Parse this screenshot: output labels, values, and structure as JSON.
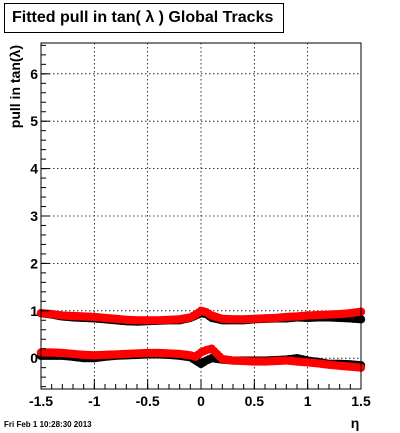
{
  "title": "Fitted pull in tan( λ )  Global Tracks",
  "footer": "Fri Feb  1 10:28:30 2013",
  "chart_data": {
    "type": "scatter",
    "title": "Fitted pull in tan( λ )  Global Tracks",
    "xlabel": "η",
    "ylabel": "pull in tan(λ)",
    "xlim": [
      -1.5,
      1.5
    ],
    "ylim": [
      -0.65,
      6.65
    ],
    "xticks": [
      -1.5,
      -1,
      -0.5,
      0,
      0.5,
      1,
      1.5
    ],
    "xtick_labels": [
      "-1.5",
      "-1",
      "-0.5",
      "0",
      "0.5",
      "1",
      "1.5"
    ],
    "yticks": [
      0,
      1,
      2,
      3,
      4,
      5,
      6
    ],
    "ytick_labels": [
      "0",
      "1",
      "2",
      "3",
      "4",
      "5",
      "6"
    ],
    "grid": true,
    "colors": {
      "series_black": "#000000",
      "series_red": "#ff0000"
    },
    "series": [
      {
        "color": "#000000",
        "x": [
          -1.5,
          -1.4,
          -1.3,
          -1.2,
          -1.1,
          -1.0,
          -0.9,
          -0.8,
          -0.7,
          -0.6,
          -0.5,
          -0.4,
          -0.3,
          -0.2,
          -0.1,
          -0.05,
          0.0,
          0.05,
          0.1,
          0.2,
          0.3,
          0.4,
          0.5,
          0.6,
          0.7,
          0.8,
          0.9,
          1.0,
          1.1,
          1.2,
          1.3,
          1.4,
          1.5
        ],
        "y": [
          0.05,
          0.05,
          0.05,
          0.03,
          0.0,
          0.0,
          0.03,
          0.05,
          0.06,
          0.07,
          0.08,
          0.08,
          0.07,
          0.05,
          0.02,
          -0.05,
          -0.12,
          -0.05,
          0.0,
          -0.03,
          -0.05,
          -0.05,
          -0.05,
          -0.05,
          -0.04,
          -0.03,
          0.0,
          -0.05,
          -0.08,
          -0.12,
          -0.12,
          -0.13,
          -0.15
        ]
      },
      {
        "color": "#000000",
        "x": [
          -1.5,
          -1.4,
          -1.3,
          -1.2,
          -1.1,
          -1.0,
          -0.9,
          -0.8,
          -0.7,
          -0.6,
          -0.5,
          -0.4,
          -0.3,
          -0.2,
          -0.1,
          0.0,
          0.05,
          0.1,
          0.2,
          0.3,
          0.4,
          0.5,
          0.6,
          0.7,
          0.8,
          0.9,
          1.0,
          1.1,
          1.2,
          1.3,
          1.4,
          1.5
        ],
        "y": [
          0.95,
          0.92,
          0.88,
          0.86,
          0.85,
          0.84,
          0.82,
          0.8,
          0.78,
          0.77,
          0.78,
          0.79,
          0.8,
          0.8,
          0.85,
          0.95,
          0.93,
          0.85,
          0.8,
          0.8,
          0.8,
          0.82,
          0.83,
          0.84,
          0.84,
          0.86,
          0.85,
          0.86,
          0.86,
          0.85,
          0.84,
          0.82
        ]
      },
      {
        "color": "#ff0000",
        "x": [
          -1.5,
          -1.4,
          -1.3,
          -1.2,
          -1.1,
          -1.0,
          -0.9,
          -0.8,
          -0.7,
          -0.6,
          -0.5,
          -0.4,
          -0.3,
          -0.2,
          -0.1,
          -0.05,
          0.0,
          0.05,
          0.1,
          0.2,
          0.3,
          0.4,
          0.5,
          0.6,
          0.7,
          0.8,
          0.9,
          1.0,
          1.1,
          1.2,
          1.3,
          1.4,
          1.5
        ],
        "y": [
          0.12,
          0.12,
          0.11,
          0.09,
          0.07,
          0.06,
          0.07,
          0.08,
          0.09,
          0.1,
          0.11,
          0.11,
          0.1,
          0.09,
          0.06,
          0.03,
          0.12,
          0.17,
          0.2,
          -0.02,
          -0.05,
          -0.06,
          -0.07,
          -0.07,
          -0.06,
          -0.05,
          -0.07,
          -0.09,
          -0.11,
          -0.14,
          -0.16,
          -0.18,
          -0.2
        ]
      },
      {
        "color": "#ff0000",
        "x": [
          -1.5,
          -1.4,
          -1.3,
          -1.2,
          -1.1,
          -1.0,
          -0.9,
          -0.8,
          -0.7,
          -0.6,
          -0.5,
          -0.4,
          -0.3,
          -0.2,
          -0.1,
          -0.05,
          0.0,
          0.05,
          0.1,
          0.2,
          0.3,
          0.4,
          0.5,
          0.6,
          0.7,
          0.8,
          0.9,
          1.0,
          1.1,
          1.2,
          1.3,
          1.4,
          1.5
        ],
        "y": [
          0.95,
          0.93,
          0.9,
          0.89,
          0.88,
          0.87,
          0.85,
          0.83,
          0.81,
          0.8,
          0.8,
          0.8,
          0.81,
          0.82,
          0.86,
          0.92,
          1.0,
          0.97,
          0.9,
          0.83,
          0.82,
          0.82,
          0.83,
          0.84,
          0.85,
          0.87,
          0.88,
          0.9,
          0.91,
          0.92,
          0.93,
          0.95,
          0.98
        ]
      }
    ]
  }
}
